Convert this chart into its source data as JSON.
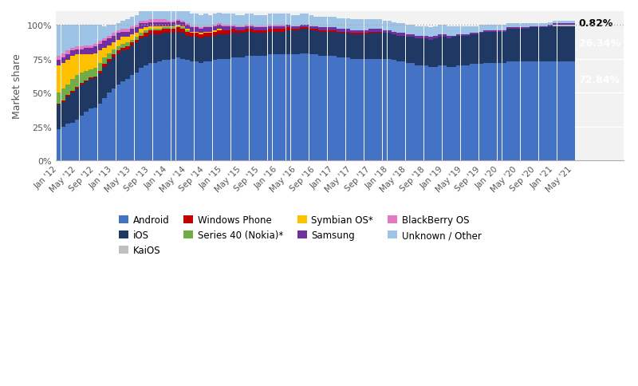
{
  "title": "",
  "ylabel": "Market share",
  "colors": {
    "Android": "#4472C4",
    "iOS": "#1F3864",
    "KaiOS": "#BFBFBF",
    "Windows Phone": "#C00000",
    "Series 40 (Nokia)*": "#70AD47",
    "Symbian OS*": "#FFC000",
    "Samsung": "#7030A0",
    "BlackBerry OS": "#E478C3",
    "Unknown / Other": "#9DC3E6"
  },
  "legend_order": [
    "Android",
    "iOS",
    "KaiOS",
    "Windows Phone",
    "Series 40 (Nokia)*",
    "Symbian OS*",
    "Samsung",
    "BlackBerry OS",
    "Unknown / Other"
  ],
  "tick_labels": [
    "Jan '12",
    "May '12",
    "Sep '12",
    "Jan '13",
    "May '13",
    "Sep '13",
    "Jan '14",
    "May '14",
    "Sep '14",
    "Jan '15",
    "May '15",
    "Sep '15",
    "Jan '16",
    "May '16",
    "Sep '16",
    "Jan '17",
    "May '17",
    "Sep '17",
    "Jan '18",
    "May '18",
    "Sep '18",
    "Jan '19",
    "May '19",
    "Sep '19",
    "Jan '20",
    "May '20",
    "Sep '20",
    "Jan '21",
    "May '21"
  ],
  "tick_positions": [
    0,
    4,
    8,
    12,
    16,
    20,
    24,
    28,
    32,
    36,
    40,
    44,
    48,
    52,
    56,
    60,
    64,
    68,
    72,
    76,
    80,
    84,
    88,
    92,
    96,
    100,
    104,
    108,
    112
  ],
  "n": 113,
  "data": {
    "Android": [
      23,
      25,
      27,
      28,
      30,
      33,
      36,
      38,
      39,
      42,
      46,
      50,
      53,
      56,
      58,
      60,
      63,
      65,
      68,
      70,
      72,
      72,
      73,
      74,
      74,
      75,
      76,
      75,
      74,
      73,
      73,
      72,
      73,
      73,
      74,
      75,
      75,
      75,
      76,
      76,
      76,
      77,
      77,
      77,
      77,
      77,
      78,
      78,
      78,
      78,
      78,
      78,
      78,
      79,
      79,
      78,
      78,
      77,
      77,
      77,
      77,
      76,
      76,
      76,
      75,
      75,
      75,
      75,
      75,
      75,
      75,
      75,
      75,
      74,
      73,
      73,
      72,
      72,
      70,
      70,
      70,
      69,
      69,
      70,
      70,
      69,
      69,
      70,
      70,
      70,
      71,
      71,
      71,
      72,
      72,
      72,
      72,
      72,
      73,
      73,
      73,
      73,
      73,
      73,
      73,
      73,
      73,
      73,
      73,
      73,
      73,
      73,
      73
    ],
    "iOS": [
      18,
      18,
      20,
      22,
      23,
      23,
      22,
      22,
      22,
      22,
      23,
      23,
      23,
      23,
      23,
      22,
      22,
      22,
      22,
      21,
      21,
      21,
      20,
      20,
      20,
      19,
      19,
      19,
      18,
      18,
      18,
      18,
      18,
      18,
      18,
      18,
      18,
      18,
      18,
      18,
      18,
      18,
      18,
      17,
      17,
      17,
      17,
      17,
      17,
      17,
      18,
      18,
      18,
      18,
      18,
      18,
      18,
      18,
      18,
      18,
      18,
      18,
      18,
      18,
      18,
      18,
      18,
      18,
      19,
      19,
      19,
      19,
      19,
      19,
      19,
      19,
      19,
      19,
      20,
      20,
      20,
      20,
      21,
      21,
      21,
      21,
      22,
      22,
      22,
      22,
      22,
      22,
      23,
      23,
      23,
      23,
      23,
      23,
      24,
      24,
      24,
      24,
      24,
      25,
      25,
      25,
      25,
      26,
      26,
      26,
      26,
      26,
      26
    ],
    "KaiOS": [
      0,
      0,
      0,
      0,
      0,
      0,
      0,
      0,
      0,
      0,
      0,
      0,
      0,
      0,
      0,
      0,
      0,
      0,
      0,
      0,
      0,
      0,
      0,
      0,
      0,
      0,
      0,
      0,
      0,
      0,
      0,
      0,
      0,
      0,
      0,
      0,
      0,
      0,
      0,
      0,
      0,
      0,
      0,
      0,
      0,
      0,
      0,
      0,
      0,
      0,
      0,
      0,
      0,
      0,
      0,
      0,
      0,
      0,
      0,
      0,
      0,
      0,
      0,
      0,
      0,
      0,
      0,
      0,
      0,
      0,
      0,
      0,
      0,
      0,
      0,
      0,
      0,
      0,
      0,
      0,
      0,
      0,
      0,
      0,
      0,
      0,
      0,
      0,
      0,
      0,
      0,
      0,
      0,
      0,
      0,
      0,
      0,
      0,
      0,
      0,
      0,
      0,
      0,
      0,
      0,
      0,
      0,
      0,
      1,
      1,
      1,
      1,
      1
    ],
    "Windows Phone": [
      1,
      1,
      1,
      1,
      1,
      1,
      1,
      1,
      1,
      2,
      2,
      2,
      2,
      2,
      2,
      2,
      2,
      2,
      2,
      3,
      3,
      3,
      3,
      3,
      3,
      3,
      3,
      3,
      3,
      3,
      3,
      3,
      3,
      3,
      3,
      3,
      3,
      3,
      3,
      2,
      2,
      2,
      2,
      2,
      2,
      2,
      2,
      2,
      2,
      2,
      2,
      1,
      1,
      1,
      1,
      1,
      1,
      1,
      1,
      1,
      1,
      1,
      1,
      1,
      1,
      1,
      1,
      1,
      1,
      1,
      1,
      0,
      0,
      0,
      0,
      0,
      0,
      0,
      0,
      0,
      0,
      0,
      0,
      0,
      0,
      0,
      0,
      0,
      0,
      0,
      0,
      0,
      0,
      0,
      0,
      0,
      0,
      0,
      0,
      0,
      0,
      0,
      0,
      0,
      0,
      0,
      0,
      0,
      0,
      0,
      0,
      0,
      0
    ],
    "Series 40 (Nokia)*": [
      8,
      9,
      8,
      9,
      9,
      8,
      7,
      6,
      6,
      6,
      5,
      4,
      4,
      3,
      3,
      3,
      2,
      2,
      2,
      2,
      1,
      1,
      1,
      1,
      1,
      1,
      1,
      1,
      1,
      0,
      0,
      0,
      0,
      0,
      0,
      0,
      0,
      0,
      0,
      0,
      0,
      0,
      0,
      0,
      0,
      0,
      0,
      0,
      0,
      0,
      0,
      0,
      0,
      0,
      0,
      0,
      0,
      0,
      0,
      0,
      0,
      0,
      0,
      0,
      0,
      0,
      0,
      0,
      0,
      0,
      0,
      0,
      0,
      0,
      0,
      0,
      0,
      0,
      0,
      0,
      0,
      0,
      0,
      0,
      0,
      0,
      0,
      0,
      0,
      0,
      0,
      0,
      0,
      0,
      0,
      0,
      0,
      0,
      0,
      0,
      0,
      0,
      0,
      0,
      0,
      0,
      0,
      0,
      0,
      0,
      0,
      0,
      0
    ],
    "Symbian OS*": [
      20,
      19,
      18,
      17,
      15,
      13,
      12,
      11,
      11,
      9,
      7,
      6,
      5,
      5,
      5,
      4,
      4,
      3,
      3,
      2,
      2,
      2,
      2,
      1,
      1,
      1,
      1,
      1,
      1,
      1,
      1,
      1,
      1,
      1,
      1,
      1,
      0,
      0,
      0,
      0,
      0,
      0,
      0,
      0,
      0,
      0,
      0,
      0,
      0,
      0,
      0,
      0,
      0,
      0,
      0,
      0,
      0,
      0,
      0,
      0,
      0,
      0,
      0,
      0,
      0,
      0,
      0,
      0,
      0,
      0,
      0,
      0,
      0,
      0,
      0,
      0,
      0,
      0,
      0,
      0,
      0,
      0,
      0,
      0,
      0,
      0,
      0,
      0,
      0,
      0,
      0,
      0,
      0,
      0,
      0,
      0,
      0,
      0,
      0,
      0,
      0,
      0,
      0,
      0,
      0,
      0,
      0,
      0,
      0,
      0,
      0,
      0,
      0
    ],
    "Samsung": [
      4,
      4,
      4,
      4,
      4,
      4,
      5,
      5,
      5,
      5,
      5,
      5,
      5,
      5,
      4,
      4,
      4,
      4,
      4,
      3,
      3,
      3,
      3,
      3,
      3,
      3,
      3,
      3,
      3,
      3,
      3,
      3,
      3,
      3,
      3,
      3,
      3,
      3,
      2,
      2,
      2,
      2,
      2,
      2,
      2,
      2,
      2,
      2,
      2,
      2,
      2,
      2,
      2,
      2,
      2,
      2,
      2,
      2,
      2,
      2,
      2,
      2,
      2,
      2,
      2,
      2,
      2,
      2,
      2,
      2,
      2,
      2,
      2,
      2,
      2,
      2,
      2,
      2,
      2,
      2,
      2,
      2,
      2,
      2,
      2,
      2,
      1,
      1,
      1,
      1,
      1,
      1,
      1,
      1,
      1,
      1,
      1,
      1,
      1,
      1,
      1,
      1,
      1,
      1,
      1,
      1,
      1,
      1,
      1,
      1,
      1,
      1,
      1
    ],
    "BlackBerry OS": [
      3,
      3,
      3,
      2,
      2,
      2,
      2,
      2,
      2,
      2,
      2,
      2,
      2,
      2,
      2,
      2,
      2,
      2,
      2,
      2,
      2,
      2,
      2,
      2,
      1,
      1,
      1,
      1,
      1,
      1,
      1,
      1,
      1,
      1,
      1,
      1,
      1,
      1,
      1,
      1,
      1,
      1,
      1,
      1,
      1,
      1,
      1,
      1,
      1,
      1,
      0,
      0,
      0,
      0,
      0,
      0,
      0,
      0,
      0,
      0,
      0,
      0,
      0,
      0,
      0,
      0,
      0,
      0,
      0,
      0,
      0,
      0,
      0,
      0,
      0,
      0,
      0,
      0,
      0,
      0,
      0,
      0,
      0,
      0,
      0,
      0,
      0,
      0,
      0,
      0,
      0,
      0,
      0,
      0,
      0,
      0,
      0,
      0,
      0,
      0,
      0,
      0,
      0,
      0,
      0,
      0,
      0,
      0,
      0,
      0,
      0,
      0,
      0
    ],
    "Unknown / Other": [
      23,
      21,
      19,
      17,
      16,
      16,
      15,
      15,
      14,
      12,
      9,
      8,
      6,
      5,
      6,
      7,
      7,
      7,
      7,
      7,
      8,
      8,
      8,
      8,
      9,
      8,
      8,
      8,
      9,
      9,
      9,
      9,
      9,
      8,
      8,
      8,
      8,
      8,
      8,
      8,
      8,
      8,
      8,
      8,
      8,
      8,
      8,
      8,
      8,
      8,
      8,
      8,
      8,
      8,
      8,
      8,
      7,
      8,
      8,
      8,
      8,
      8,
      8,
      8,
      8,
      8,
      8,
      8,
      7,
      7,
      7,
      7,
      7,
      7,
      7,
      7,
      7,
      7,
      7,
      7,
      7,
      7,
      7,
      7,
      7,
      7,
      7,
      6,
      6,
      6,
      5,
      5,
      5,
      4,
      4,
      4,
      4,
      4,
      3,
      3,
      3,
      3,
      3,
      2,
      2,
      2,
      2,
      2,
      2,
      2,
      2,
      2,
      2
    ]
  }
}
